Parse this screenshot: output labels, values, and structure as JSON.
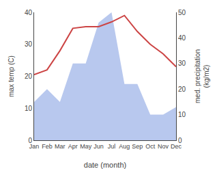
{
  "chart_data": {
    "type": "line",
    "xlabel": "date (month)",
    "ylabel": "max temp (C)",
    "y2label": "med. precipitation\n(kg/m2)",
    "categories": [
      "Jan",
      "Feb",
      "Mar",
      "Apr",
      "May",
      "Jun",
      "Jul",
      "Aug",
      "Sep",
      "Oct",
      "Nov",
      "Dec"
    ],
    "series": [
      {
        "type": "area",
        "axis": "y2",
        "color": "#b8c8ee",
        "values": [
          15,
          20,
          15,
          30,
          30,
          46,
          50,
          22,
          22,
          10,
          10,
          13
        ]
      },
      {
        "type": "line",
        "color": "#cc4444",
        "values": [
          20.5,
          22,
          28,
          35,
          35.5,
          35.5,
          37,
          39,
          34,
          30,
          27,
          23
        ]
      }
    ],
    "ylim": [
      0,
      40
    ],
    "yticks": [
      0,
      10,
      20,
      30,
      40
    ],
    "y2lim": [
      0,
      50
    ],
    "y2ticks": [
      0,
      10,
      20,
      30,
      40,
      50
    ],
    "grid": false
  }
}
